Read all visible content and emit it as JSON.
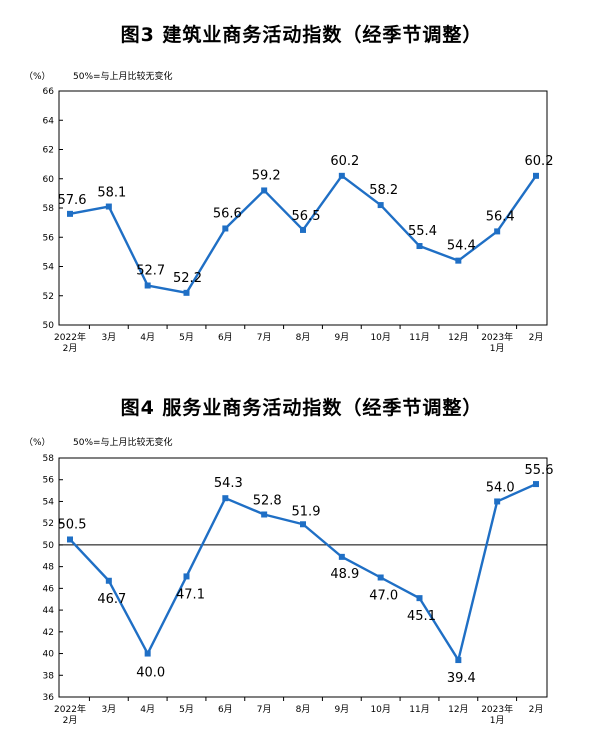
{
  "chart_data": [
    {
      "type": "line",
      "title": "图3  建筑业商务活动指数（经季节调整）",
      "unit_label": "（%）",
      "note": "50%=与上月比较无变化",
      "categories": [
        [
          "2022年",
          "2月"
        ],
        [
          "3月"
        ],
        [
          "4月"
        ],
        [
          "5月"
        ],
        [
          "6月"
        ],
        [
          "7月"
        ],
        [
          "8月"
        ],
        [
          "9月"
        ],
        [
          "10月"
        ],
        [
          "11月"
        ],
        [
          "12月"
        ],
        [
          "2023年",
          "1月"
        ],
        [
          "2月"
        ]
      ],
      "values": [
        57.6,
        58.1,
        52.7,
        52.2,
        56.6,
        59.2,
        56.5,
        60.2,
        58.2,
        55.4,
        54.4,
        56.4,
        60.2
      ],
      "value_labels": [
        "57.6",
        "58.1",
        "52.7",
        "52.2",
        "56.6",
        "59.2",
        "56.5",
        "60.2",
        "58.2",
        "55.4",
        "54.4",
        "56.4",
        "60.2"
      ],
      "ylim": [
        50,
        66
      ],
      "yticks": [
        50,
        52,
        54,
        56,
        58,
        60,
        62,
        64,
        66
      ],
      "reference_line": null,
      "line_color": "#1f6fc5",
      "grid": false
    },
    {
      "type": "line",
      "title": "图4  服务业商务活动指数（经季节调整）",
      "unit_label": "（%）",
      "note": "50%=与上月比较无变化",
      "categories": [
        [
          "2022年",
          "2月"
        ],
        [
          "3月"
        ],
        [
          "4月"
        ],
        [
          "5月"
        ],
        [
          "6月"
        ],
        [
          "7月"
        ],
        [
          "8月"
        ],
        [
          "9月"
        ],
        [
          "10月"
        ],
        [
          "11月"
        ],
        [
          "12月"
        ],
        [
          "2023年",
          "1月"
        ],
        [
          "2月"
        ]
      ],
      "values": [
        50.5,
        46.7,
        40.0,
        47.1,
        54.3,
        52.8,
        51.9,
        48.9,
        47.0,
        45.1,
        39.4,
        54.0,
        55.6
      ],
      "value_labels": [
        "50.5",
        "46.7",
        "40.0",
        "47.1",
        "54.3",
        "52.8",
        "51.9",
        "48.9",
        "47.0",
        "45.1",
        "39.4",
        "54.0",
        "55.6"
      ],
      "ylim": [
        36,
        58
      ],
      "yticks": [
        36,
        38,
        40,
        42,
        44,
        46,
        48,
        50,
        52,
        54,
        56,
        58
      ],
      "reference_line": 50,
      "line_color": "#1f6fc5",
      "grid": false
    }
  ]
}
